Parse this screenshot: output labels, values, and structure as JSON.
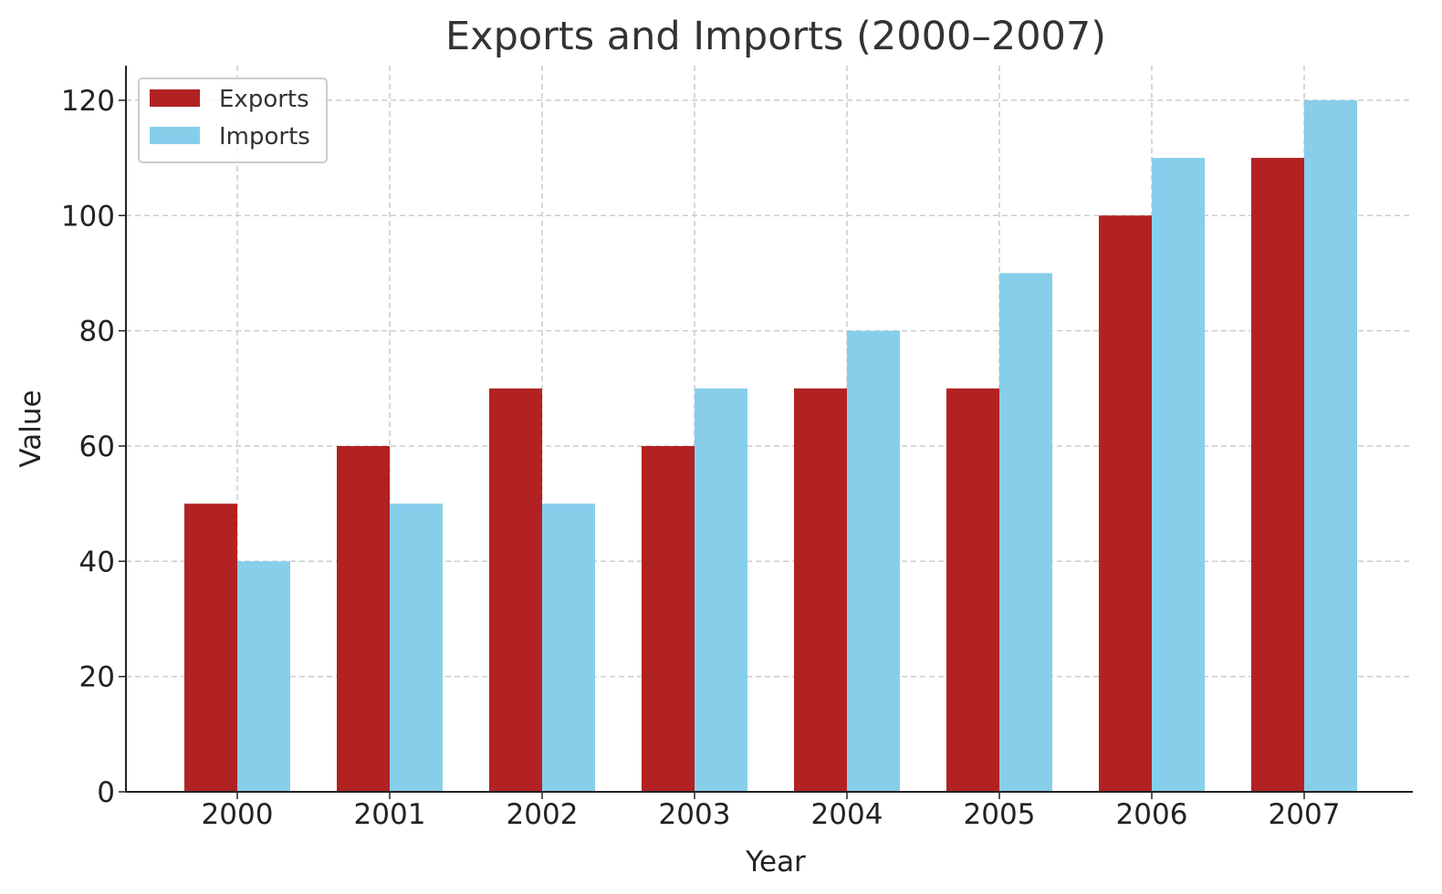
{
  "chart_data": {
    "type": "bar",
    "title": "Exports and Imports (2000–2007)",
    "xlabel": "Year",
    "ylabel": "Value",
    "categories": [
      "2000",
      "2001",
      "2002",
      "2003",
      "2004",
      "2005",
      "2006",
      "2007"
    ],
    "series": [
      {
        "name": "Exports",
        "color": "#b22222",
        "values": [
          50,
          60,
          70,
          60,
          70,
          70,
          100,
          110
        ]
      },
      {
        "name": "Imports",
        "color": "#87ceeb",
        "values": [
          40,
          50,
          50,
          70,
          80,
          90,
          110,
          120
        ]
      }
    ],
    "ylim": [
      0,
      126
    ],
    "yticks": [
      0,
      20,
      40,
      60,
      80,
      100,
      120
    ],
    "grid": true,
    "legend_position": "top-left"
  }
}
